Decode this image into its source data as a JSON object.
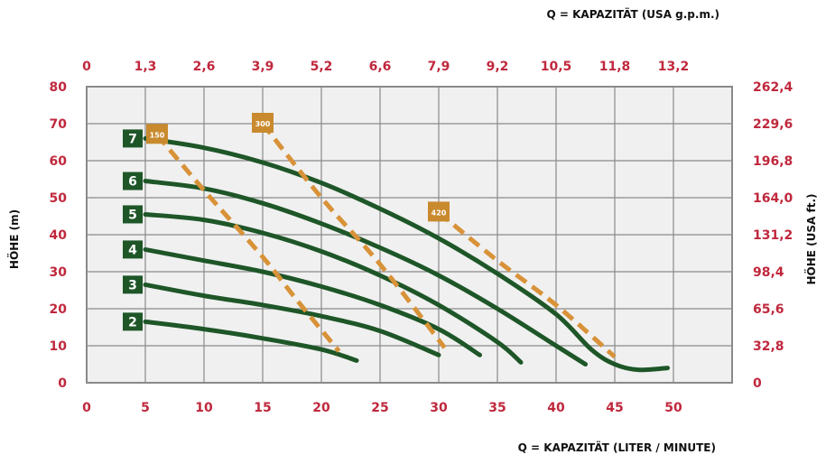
{
  "chart_data": {
    "type": "line",
    "xlabel_bottom": "Q = KAPAZITÄT (LITER / MINUTE)",
    "xlabel_top": "Q = KAPAZITÄT (USA g.p.m.)",
    "ylabel_left": "HÖHE (m)",
    "ylabel_right": "HÖHE (USA ft.)",
    "xlim": [
      0,
      55
    ],
    "ylim": [
      0,
      80
    ],
    "grid": true,
    "x_ticks_bottom": [
      "0",
      "5",
      "10",
      "15",
      "20",
      "25",
      "30",
      "35",
      "40",
      "45",
      "50"
    ],
    "x_ticks_top": [
      "0",
      "1,3",
      "2,6",
      "3,9",
      "5,2",
      "6,6",
      "7,9",
      "9,2",
      "10,5",
      "11,8",
      "13,2"
    ],
    "y_ticks_left": [
      "0",
      "10",
      "20",
      "30",
      "40",
      "50",
      "60",
      "70",
      "80"
    ],
    "y_ticks_right": [
      "",
      "32,8",
      "65,6",
      "98,4",
      "131,2",
      "164,0",
      "196,8",
      "229,6",
      "262,4"
    ],
    "series": [
      {
        "name": "2",
        "points": [
          [
            5,
            16.5
          ],
          [
            10,
            14.5
          ],
          [
            15,
            12
          ],
          [
            20,
            9
          ],
          [
            23,
            6
          ]
        ]
      },
      {
        "name": "3",
        "points": [
          [
            5,
            26.5
          ],
          [
            10,
            23.5
          ],
          [
            15,
            21
          ],
          [
            20,
            18
          ],
          [
            25,
            14
          ],
          [
            30,
            7.5
          ]
        ]
      },
      {
        "name": "4",
        "points": [
          [
            5,
            36
          ],
          [
            10,
            33
          ],
          [
            15,
            30
          ],
          [
            20,
            26
          ],
          [
            25,
            21
          ],
          [
            30,
            14.5
          ],
          [
            33.5,
            7.5
          ]
        ]
      },
      {
        "name": "5",
        "points": [
          [
            5,
            45.5
          ],
          [
            10,
            44
          ],
          [
            15,
            40.5
          ],
          [
            20,
            35.5
          ],
          [
            25,
            29
          ],
          [
            30,
            21
          ],
          [
            35,
            11
          ],
          [
            37,
            5.5
          ]
        ]
      },
      {
        "name": "6",
        "points": [
          [
            5,
            54.5
          ],
          [
            10,
            52.5
          ],
          [
            15,
            48.5
          ],
          [
            20,
            43
          ],
          [
            25,
            36.5
          ],
          [
            30,
            29
          ],
          [
            35,
            20
          ],
          [
            40,
            10
          ],
          [
            42.5,
            5
          ]
        ]
      },
      {
        "name": "7",
        "points": [
          [
            5,
            66
          ],
          [
            10,
            63.5
          ],
          [
            15,
            59.5
          ],
          [
            20,
            54
          ],
          [
            25,
            47
          ],
          [
            30,
            39
          ],
          [
            35,
            29.5
          ],
          [
            40,
            18.5
          ],
          [
            43,
            9
          ],
          [
            45,
            5
          ],
          [
            47,
            3.5
          ],
          [
            49.5,
            4
          ]
        ]
      }
    ],
    "iso_curves": [
      {
        "label": "150",
        "points": [
          [
            6,
            67
          ],
          [
            10,
            52
          ],
          [
            15,
            34
          ],
          [
            18,
            22
          ],
          [
            21.5,
            8.5
          ]
        ]
      },
      {
        "label": "300",
        "points": [
          [
            15,
            70
          ],
          [
            20,
            50
          ],
          [
            25,
            32
          ],
          [
            30.5,
            9.5
          ]
        ]
      },
      {
        "label": "420",
        "points": [
          [
            30,
            46
          ],
          [
            35,
            33
          ],
          [
            40,
            21
          ],
          [
            45,
            7
          ]
        ]
      }
    ],
    "colors": {
      "curve": "#1e5628",
      "iso": "#d89238",
      "iso_badge": "#c98a2e",
      "tick_text": "#c0283d",
      "grid": "#8a8a8a",
      "plot_bg": "#f0f0f0"
    }
  }
}
